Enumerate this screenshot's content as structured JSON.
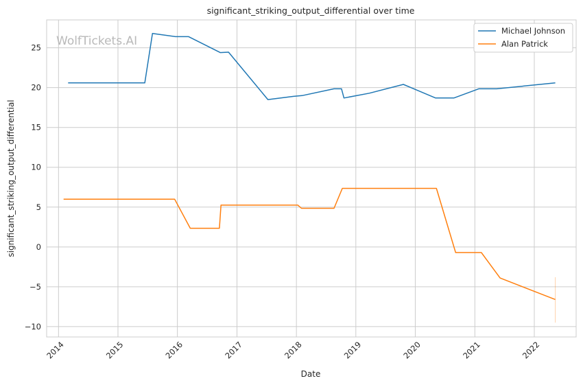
{
  "chart_data": {
    "type": "line",
    "title": "significant_striking_output_differential over time",
    "xlabel": "Date",
    "ylabel": "significant_striking_output_differential",
    "watermark": "WolfTickets.AI",
    "xlim": [
      "2013-10-20",
      "2022-09-15"
    ],
    "ylim": [
      -11.3,
      28.5
    ],
    "x_ticks": [
      "2014-01-01",
      "2015-01-01",
      "2016-01-01",
      "2017-01-01",
      "2018-01-01",
      "2019-01-01",
      "2020-01-01",
      "2021-01-01",
      "2022-01-01"
    ],
    "x_tick_labels": [
      "2014",
      "2015",
      "2016",
      "2017",
      "2018",
      "2019",
      "2020",
      "2021",
      "2022"
    ],
    "y_ticks": [
      -10,
      -5,
      0,
      5,
      10,
      15,
      20,
      25
    ],
    "y_tick_labels": [
      "−10",
      "−5",
      "0",
      "5",
      "10",
      "15",
      "20",
      "25"
    ],
    "grid": true,
    "legend_position": "top-right",
    "series": [
      {
        "name": "Michael Johnson",
        "color": "#1f77b4",
        "points": [
          {
            "x": "2014-03-01",
            "y": 20.6
          },
          {
            "x": "2015-06-15",
            "y": 20.6
          },
          {
            "x": "2015-08-01",
            "y": 26.8
          },
          {
            "x": "2015-12-20",
            "y": 26.4
          },
          {
            "x": "2016-03-10",
            "y": 26.4
          },
          {
            "x": "2016-09-20",
            "y": 24.4
          },
          {
            "x": "2016-11-10",
            "y": 24.45
          },
          {
            "x": "2017-07-10",
            "y": 18.5
          },
          {
            "x": "2017-12-15",
            "y": 18.9
          },
          {
            "x": "2018-02-05",
            "y": 19.0
          },
          {
            "x": "2018-08-20",
            "y": 19.85
          },
          {
            "x": "2018-10-05",
            "y": 19.85
          },
          {
            "x": "2018-10-20",
            "y": 18.7
          },
          {
            "x": "2019-03-25",
            "y": 19.3
          },
          {
            "x": "2019-10-20",
            "y": 20.4
          },
          {
            "x": "2020-05-05",
            "y": 18.7
          },
          {
            "x": "2020-08-25",
            "y": 18.7
          },
          {
            "x": "2021-01-25",
            "y": 19.85
          },
          {
            "x": "2021-05-15",
            "y": 19.85
          },
          {
            "x": "2022-05-10",
            "y": 20.6
          }
        ]
      },
      {
        "name": "Alan Patrick",
        "color": "#ff7f0e",
        "points": [
          {
            "x": "2014-02-01",
            "y": 6.0
          },
          {
            "x": "2015-12-15",
            "y": 6.0
          },
          {
            "x": "2016-03-20",
            "y": 2.35
          },
          {
            "x": "2016-09-15",
            "y": 2.35
          },
          {
            "x": "2016-09-25",
            "y": 5.25
          },
          {
            "x": "2018-01-10",
            "y": 5.25
          },
          {
            "x": "2018-02-01",
            "y": 4.85
          },
          {
            "x": "2018-08-20",
            "y": 4.85
          },
          {
            "x": "2018-10-10",
            "y": 7.35
          },
          {
            "x": "2020-05-10",
            "y": 7.35
          },
          {
            "x": "2020-09-05",
            "y": -0.7
          },
          {
            "x": "2021-02-10",
            "y": -0.7
          },
          {
            "x": "2021-06-05",
            "y": -3.9
          },
          {
            "x": "2022-05-10",
            "y": -6.6
          }
        ]
      }
    ],
    "error_bar": {
      "x": "2022-05-10",
      "y_low": -9.5,
      "y_high": -3.8,
      "color": "#ff7f0e"
    }
  }
}
